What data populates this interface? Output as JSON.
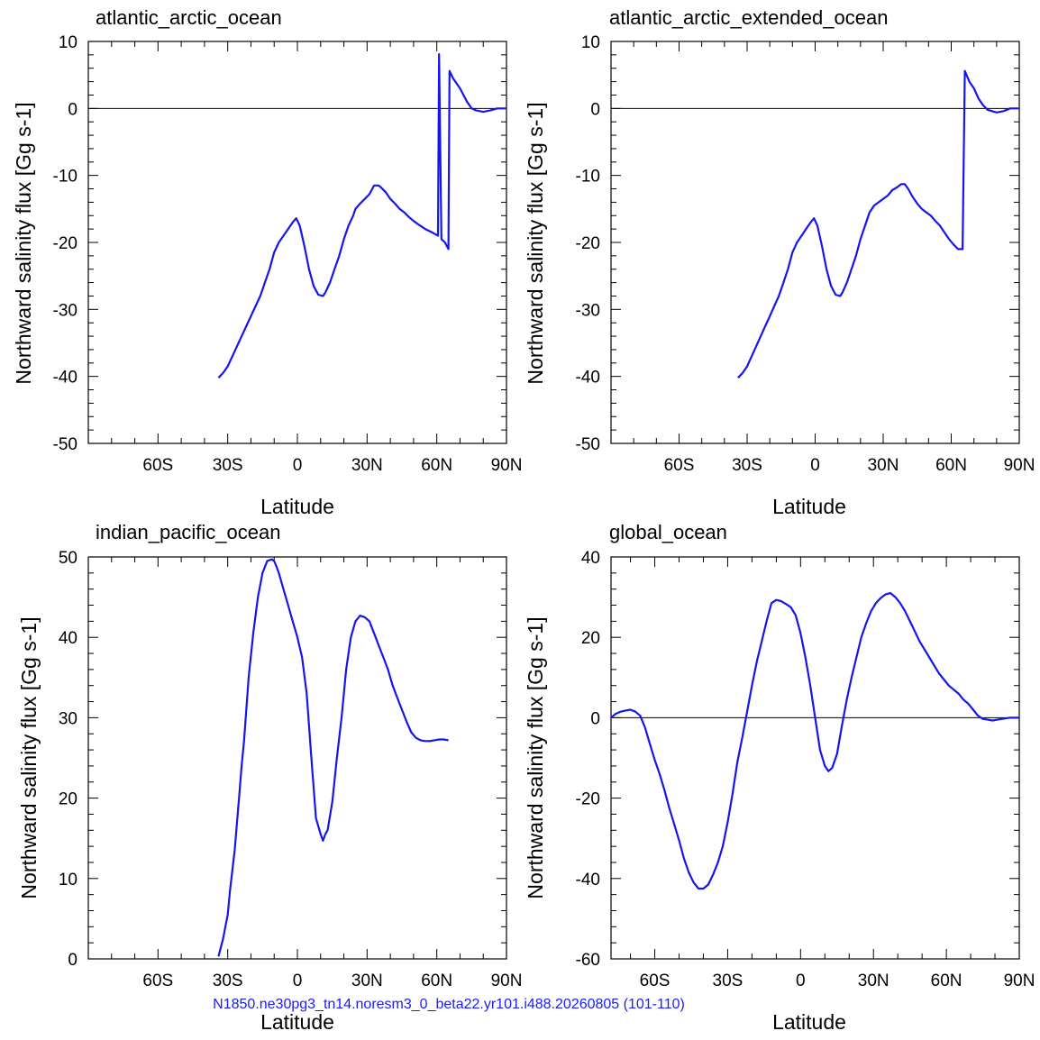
{
  "footer": "N1850.ne30pg3_tn14.noresm3_0_beta22.yr101.i488.20260805 (101-110)",
  "line_color": "#1515ee",
  "chart_data": [
    {
      "type": "line",
      "title": "atlantic_arctic_ocean",
      "xlabel": "Latitude",
      "ylabel": "Northward salinity flux [Gg s-1]",
      "xlim": [
        -90,
        90
      ],
      "ylim": [
        -50,
        10
      ],
      "xticks": [
        {
          "v": -60,
          "label": "60S"
        },
        {
          "v": -30,
          "label": "30S"
        },
        {
          "v": 0,
          "label": "0"
        },
        {
          "v": 30,
          "label": "30N"
        },
        {
          "v": 60,
          "label": "60N"
        },
        {
          "v": 90,
          "label": "90N"
        }
      ],
      "yticks": [
        -50,
        -40,
        -30,
        -20,
        -10,
        0,
        10
      ],
      "zero_line": true,
      "series": [
        {
          "x": [
            -34,
            -32,
            -30,
            -28,
            -26,
            -24,
            -22,
            -20,
            -18,
            -16,
            -14,
            -12,
            -10,
            -8,
            -6,
            -4,
            -2,
            -0.5,
            1,
            3,
            5,
            7,
            9,
            11,
            12,
            14,
            16,
            18,
            20,
            22,
            24,
            25,
            27,
            29,
            31,
            33,
            35,
            36,
            38,
            40,
            42,
            44,
            46,
            48,
            50,
            52,
            55,
            58,
            60.5,
            61,
            62,
            63.5,
            65,
            65.5,
            67,
            70,
            73,
            75,
            77,
            80,
            83,
            86,
            90
          ],
          "y": [
            -40.2,
            -39.5,
            -38.5,
            -37,
            -35.5,
            -34,
            -32.5,
            -31,
            -29.5,
            -28,
            -26,
            -24,
            -21.5,
            -20,
            -19,
            -18,
            -17,
            -16.4,
            -17.5,
            -20.5,
            -24,
            -26.5,
            -27.8,
            -28,
            -27.5,
            -26,
            -24,
            -22,
            -19.5,
            -17.5,
            -16,
            -15,
            -14.2,
            -13.5,
            -12.8,
            -11.5,
            -11.5,
            -11.8,
            -12.5,
            -13.5,
            -14.2,
            -15,
            -15.5,
            -16.2,
            -16.8,
            -17.3,
            -18,
            -18.5,
            -19,
            8.1,
            -19.5,
            -20,
            -21,
            5.6,
            4.5,
            3,
            1,
            0,
            -0.3,
            -0.5,
            -0.3,
            0,
            0
          ]
        }
      ]
    },
    {
      "type": "line",
      "title": "atlantic_arctic_extended_ocean",
      "xlabel": "Latitude",
      "ylabel": "Northward salinity flux [Gg s-1]",
      "xlim": [
        -90,
        90
      ],
      "ylim": [
        -50,
        10
      ],
      "xticks": [
        {
          "v": -60,
          "label": "60S"
        },
        {
          "v": -30,
          "label": "30S"
        },
        {
          "v": 0,
          "label": "0"
        },
        {
          "v": 30,
          "label": "30N"
        },
        {
          "v": 60,
          "label": "60N"
        },
        {
          "v": 90,
          "label": "90N"
        }
      ],
      "yticks": [
        -50,
        -40,
        -30,
        -20,
        -10,
        0,
        10
      ],
      "zero_line": true,
      "series": [
        {
          "x": [
            -34,
            -32,
            -30,
            -28,
            -26,
            -24,
            -22,
            -20,
            -18,
            -16,
            -14,
            -12,
            -10,
            -8,
            -6,
            -4,
            -2,
            -0.5,
            1,
            3,
            5,
            7,
            9,
            11,
            12,
            14,
            16,
            18,
            20,
            22,
            24,
            26,
            28,
            30,
            32,
            34,
            36,
            38,
            39.5,
            41,
            43,
            45,
            47,
            49,
            51,
            53,
            55,
            57,
            59,
            61,
            63,
            65,
            66,
            68,
            70,
            72,
            74,
            76,
            78,
            80,
            83,
            86,
            90
          ],
          "y": [
            -40.2,
            -39.5,
            -38.5,
            -37,
            -35.5,
            -34,
            -32.5,
            -31,
            -29.5,
            -28,
            -26,
            -24,
            -21.5,
            -20,
            -19,
            -18,
            -17,
            -16.4,
            -17.5,
            -20.5,
            -24,
            -26.5,
            -27.8,
            -28,
            -27.5,
            -26,
            -24,
            -22,
            -19.5,
            -17.5,
            -15.5,
            -14.5,
            -14,
            -13.5,
            -13,
            -12.2,
            -11.8,
            -11.3,
            -11.3,
            -12,
            -13.2,
            -14.2,
            -15,
            -15.5,
            -16,
            -16.8,
            -17.5,
            -18.5,
            -19.5,
            -20.3,
            -21,
            -21,
            5.6,
            4,
            3,
            1.5,
            0.5,
            -0.2,
            -0.4,
            -0.6,
            -0.4,
            0,
            0
          ]
        }
      ]
    },
    {
      "type": "line",
      "title": "indian_pacific_ocean",
      "xlabel": "Latitude",
      "ylabel": "Northward salinity flux [Gg s-1]",
      "xlim": [
        -90,
        90
      ],
      "ylim": [
        0,
        50
      ],
      "xticks": [
        {
          "v": -60,
          "label": "60S"
        },
        {
          "v": -30,
          "label": "30S"
        },
        {
          "v": 0,
          "label": "0"
        },
        {
          "v": 30,
          "label": "30N"
        },
        {
          "v": 60,
          "label": "60N"
        },
        {
          "v": 90,
          "label": "90N"
        }
      ],
      "yticks": [
        0,
        10,
        20,
        30,
        40,
        50
      ],
      "zero_line": false,
      "series": [
        {
          "x": [
            -34,
            -32,
            -30,
            -29,
            -28,
            -27,
            -26,
            -25,
            -24,
            -23,
            -22,
            -21,
            -19,
            -17,
            -15,
            -13,
            -11,
            -10,
            -9,
            -8,
            -6,
            -4,
            -2,
            0,
            2,
            4,
            6,
            8,
            10,
            11,
            12,
            13,
            15,
            17,
            19,
            21,
            23,
            25,
            27,
            29,
            31,
            33,
            35,
            37,
            39,
            41,
            43,
            45,
            47,
            49,
            51,
            53,
            55,
            57,
            59,
            61,
            63,
            65
          ],
          "y": [
            0.3,
            2.5,
            5.5,
            8.5,
            11,
            13.5,
            17,
            20.5,
            24,
            27,
            31,
            35,
            40.5,
            45,
            48,
            49.5,
            49.7,
            49.5,
            48.8,
            48,
            46,
            44,
            42,
            40,
            37.5,
            33,
            25,
            17.5,
            15.5,
            14.7,
            15.5,
            16,
            19.5,
            25,
            30,
            36,
            40,
            42,
            42.7,
            42.5,
            42,
            40.5,
            39,
            37.5,
            36,
            34,
            32.5,
            31,
            29.5,
            28.2,
            27.5,
            27.2,
            27.1,
            27.1,
            27.2,
            27.3,
            27.3,
            27.2
          ]
        }
      ]
    },
    {
      "type": "line",
      "title": "global_ocean",
      "xlabel": "Latitude",
      "ylabel": "Northward salinity flux [Gg s-1]",
      "xlim": [
        -78,
        90
      ],
      "ylim": [
        -60,
        40
      ],
      "xticks": [
        {
          "v": -60,
          "label": "60S"
        },
        {
          "v": -30,
          "label": "30S"
        },
        {
          "v": 0,
          "label": "0"
        },
        {
          "v": 30,
          "label": "30N"
        },
        {
          "v": 60,
          "label": "60N"
        },
        {
          "v": 90,
          "label": "90N"
        }
      ],
      "yticks": [
        -60,
        -40,
        -20,
        0,
        20,
        40
      ],
      "zero_line": true,
      "series": [
        {
          "x": [
            -78,
            -76,
            -74,
            -72,
            -70,
            -68,
            -66,
            -64,
            -62,
            -60,
            -58,
            -56,
            -54,
            -52,
            -50,
            -48,
            -46,
            -44,
            -42,
            -40,
            -38,
            -36,
            -34,
            -32,
            -30,
            -28,
            -26,
            -24,
            -22,
            -20,
            -18,
            -16,
            -14,
            -12,
            -10,
            -8,
            -6,
            -4,
            -2,
            0,
            2,
            4,
            6,
            8,
            10,
            11.5,
            13,
            15,
            17,
            19,
            21,
            23,
            25,
            27,
            29,
            31,
            33,
            35,
            37,
            39,
            41,
            43,
            45,
            47,
            49,
            51,
            53,
            55,
            57,
            59,
            61,
            63,
            65,
            67,
            69,
            71,
            73,
            75,
            77,
            79,
            81,
            83,
            86,
            90
          ],
          "y": [
            0,
            1,
            1.5,
            1.8,
            2,
            1.5,
            0.5,
            -2.5,
            -6.5,
            -10.5,
            -14,
            -18,
            -22.5,
            -26.5,
            -30.5,
            -35,
            -38.5,
            -41,
            -42.5,
            -42.5,
            -41.5,
            -39,
            -36,
            -32,
            -26,
            -19,
            -11,
            -5,
            1.5,
            8,
            14,
            19,
            24,
            28.5,
            29.3,
            29,
            28.3,
            27.5,
            25.5,
            21,
            15,
            8,
            0,
            -8,
            -12,
            -13.3,
            -12.5,
            -9,
            -2,
            4.5,
            10,
            15,
            20,
            23.5,
            26.5,
            28.5,
            29.8,
            30.7,
            31,
            30,
            28.5,
            26.5,
            24,
            21.5,
            19,
            17,
            15,
            13,
            11,
            9.5,
            8,
            7,
            6,
            4.5,
            3.5,
            2,
            0.5,
            -0.3,
            -0.5,
            -0.7,
            -0.5,
            -0.3,
            0,
            0
          ]
        }
      ]
    }
  ]
}
